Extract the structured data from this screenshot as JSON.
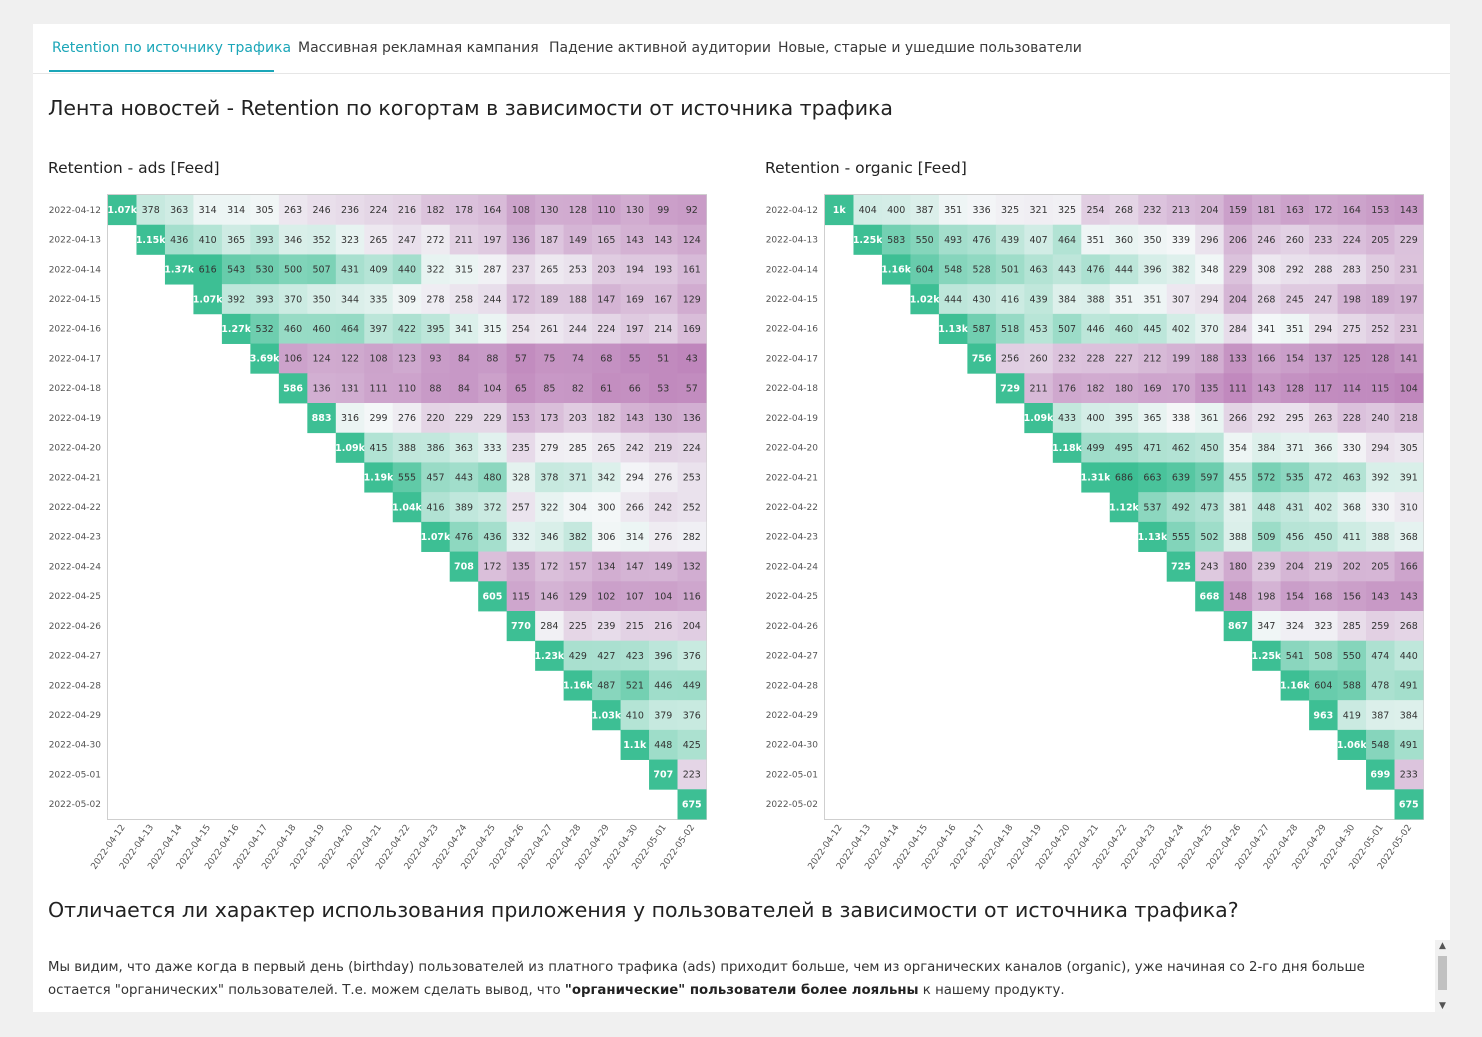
{
  "tabs": [
    {
      "label": "Retention по источнику трафика",
      "active": true
    },
    {
      "label": "Массивная рекламная кампания",
      "active": false
    },
    {
      "label": "Падение активной аудитории",
      "active": false
    },
    {
      "label": "Новые, старые и ушедшие пользователи",
      "active": false
    }
  ],
  "page_title": "Лента новостей - Retention по когортам в зависимости от источника трафика",
  "section_title": "Отличается ли характер использования приложения у пользователей в зависимости от источника трафика?",
  "paragraph": {
    "part1": "Мы видим, что даже когда в первый день (birthday) пользователей из платного трафика (ads) приходит больше, чем из органических каналов (organic), уже начиная со 2-го дня больше остается \"органических\" пользователей. Т.е. можем сделать вывод, что ",
    "bold": "\"органические\" пользователи более лояльны",
    "part2": " к нашему продукту."
  },
  "colors": {
    "accent": "#1ba6b8",
    "scale_high": "#3dbf94",
    "scale_mid": "#f4f7f8",
    "scale_low": "#bf86bc"
  },
  "chart_data": [
    {
      "type": "heatmap",
      "title": "Retention - ads [Feed]",
      "dates": [
        "2022-04-12",
        "2022-04-13",
        "2022-04-14",
        "2022-04-15",
        "2022-04-16",
        "2022-04-17",
        "2022-04-18",
        "2022-04-19",
        "2022-04-20",
        "2022-04-21",
        "2022-04-22",
        "2022-04-23",
        "2022-04-24",
        "2022-04-25",
        "2022-04-26",
        "2022-04-27",
        "2022-04-28",
        "2022-04-29",
        "2022-04-30",
        "2022-05-01",
        "2022-05-02"
      ],
      "rows": [
        [
          "1.07k",
          "378",
          "363",
          "314",
          "314",
          "305",
          "263",
          "246",
          "236",
          "224",
          "216",
          "182",
          "178",
          "164",
          "108",
          "130",
          "128",
          "110",
          "130",
          "99",
          "92"
        ],
        [
          "1.15k",
          "436",
          "410",
          "365",
          "393",
          "346",
          "352",
          "323",
          "265",
          "247",
          "272",
          "211",
          "197",
          "136",
          "187",
          "149",
          "165",
          "143",
          "143",
          "124"
        ],
        [
          "1.37k",
          "616",
          "543",
          "530",
          "500",
          "507",
          "431",
          "409",
          "440",
          "322",
          "315",
          "287",
          "237",
          "265",
          "253",
          "203",
          "194",
          "193",
          "161"
        ],
        [
          "1.07k",
          "392",
          "393",
          "370",
          "350",
          "344",
          "335",
          "309",
          "278",
          "258",
          "244",
          "172",
          "189",
          "188",
          "147",
          "169",
          "167",
          "129"
        ],
        [
          "1.27k",
          "532",
          "460",
          "460",
          "464",
          "397",
          "422",
          "395",
          "341",
          "315",
          "254",
          "261",
          "244",
          "224",
          "197",
          "214",
          "169"
        ],
        [
          "3.69k",
          "106",
          "124",
          "122",
          "108",
          "123",
          "93",
          "84",
          "88",
          "57",
          "75",
          "74",
          "68",
          "55",
          "51",
          "43"
        ],
        [
          "586",
          "136",
          "131",
          "111",
          "110",
          "88",
          "84",
          "104",
          "65",
          "85",
          "82",
          "61",
          "66",
          "53",
          "57"
        ],
        [
          "883",
          "316",
          "299",
          "276",
          "220",
          "229",
          "229",
          "153",
          "173",
          "203",
          "182",
          "143",
          "130",
          "136"
        ],
        [
          "1.09k",
          "415",
          "388",
          "386",
          "363",
          "333",
          "235",
          "279",
          "285",
          "265",
          "242",
          "219",
          "224"
        ],
        [
          "1.19k",
          "555",
          "457",
          "443",
          "480",
          "328",
          "378",
          "371",
          "342",
          "294",
          "276",
          "253"
        ],
        [
          "1.04k",
          "416",
          "389",
          "372",
          "257",
          "322",
          "304",
          "300",
          "266",
          "242",
          "252"
        ],
        [
          "1.07k",
          "476",
          "436",
          "332",
          "346",
          "382",
          "306",
          "314",
          "276",
          "282"
        ],
        [
          "708",
          "172",
          "135",
          "172",
          "157",
          "134",
          "147",
          "149",
          "132"
        ],
        [
          "605",
          "115",
          "146",
          "129",
          "102",
          "107",
          "104",
          "116"
        ],
        [
          "770",
          "284",
          "225",
          "239",
          "215",
          "216",
          "204"
        ],
        [
          "1.23k",
          "429",
          "427",
          "423",
          "396",
          "376"
        ],
        [
          "1.16k",
          "487",
          "521",
          "446",
          "449"
        ],
        [
          "1.03k",
          "410",
          "379",
          "376"
        ],
        [
          "1.1k",
          "448",
          "425"
        ],
        [
          "707",
          "223"
        ],
        [
          "675"
        ]
      ]
    },
    {
      "type": "heatmap",
      "title": "Retention - organic [Feed]",
      "dates": [
        "2022-04-12",
        "2022-04-13",
        "2022-04-14",
        "2022-04-15",
        "2022-04-16",
        "2022-04-17",
        "2022-04-18",
        "2022-04-19",
        "2022-04-20",
        "2022-04-21",
        "2022-04-22",
        "2022-04-23",
        "2022-04-24",
        "2022-04-25",
        "2022-04-26",
        "2022-04-27",
        "2022-04-28",
        "2022-04-29",
        "2022-04-30",
        "2022-05-01",
        "2022-05-02"
      ],
      "rows": [
        [
          "1k",
          "404",
          "400",
          "387",
          "351",
          "336",
          "325",
          "321",
          "325",
          "254",
          "268",
          "232",
          "213",
          "204",
          "159",
          "181",
          "163",
          "172",
          "164",
          "153",
          "143"
        ],
        [
          "1.25k",
          "583",
          "550",
          "493",
          "476",
          "439",
          "407",
          "464",
          "351",
          "360",
          "350",
          "339",
          "296",
          "206",
          "246",
          "260",
          "233",
          "224",
          "205",
          "229"
        ],
        [
          "1.16k",
          "604",
          "548",
          "528",
          "501",
          "463",
          "443",
          "476",
          "444",
          "396",
          "382",
          "348",
          "229",
          "308",
          "292",
          "288",
          "283",
          "250",
          "231"
        ],
        [
          "1.02k",
          "444",
          "430",
          "416",
          "439",
          "384",
          "388",
          "351",
          "351",
          "307",
          "294",
          "204",
          "268",
          "245",
          "247",
          "198",
          "189",
          "197"
        ],
        [
          "1.13k",
          "587",
          "518",
          "453",
          "507",
          "446",
          "460",
          "445",
          "402",
          "370",
          "284",
          "341",
          "351",
          "294",
          "275",
          "252",
          "231"
        ],
        [
          "756",
          "256",
          "260",
          "232",
          "228",
          "227",
          "212",
          "199",
          "188",
          "133",
          "166",
          "154",
          "137",
          "125",
          "128",
          "141"
        ],
        [
          "729",
          "211",
          "176",
          "182",
          "180",
          "169",
          "170",
          "135",
          "111",
          "143",
          "128",
          "117",
          "114",
          "115",
          "104"
        ],
        [
          "1.09k",
          "433",
          "400",
          "395",
          "365",
          "338",
          "361",
          "266",
          "292",
          "295",
          "263",
          "228",
          "240",
          "218"
        ],
        [
          "1.18k",
          "499",
          "495",
          "471",
          "462",
          "450",
          "354",
          "384",
          "371",
          "366",
          "330",
          "294",
          "305"
        ],
        [
          "1.31k",
          "686",
          "663",
          "639",
          "597",
          "455",
          "572",
          "535",
          "472",
          "463",
          "392",
          "391"
        ],
        [
          "1.12k",
          "537",
          "492",
          "473",
          "381",
          "448",
          "431",
          "402",
          "368",
          "330",
          "310"
        ],
        [
          "1.13k",
          "555",
          "502",
          "388",
          "509",
          "456",
          "450",
          "411",
          "388",
          "368"
        ],
        [
          "725",
          "243",
          "180",
          "239",
          "204",
          "219",
          "202",
          "205",
          "166"
        ],
        [
          "668",
          "148",
          "198",
          "154",
          "168",
          "156",
          "143",
          "143"
        ],
        [
          "867",
          "347",
          "324",
          "323",
          "285",
          "259",
          "268"
        ],
        [
          "1.25k",
          "541",
          "508",
          "550",
          "474",
          "440"
        ],
        [
          "1.16k",
          "604",
          "588",
          "478",
          "491"
        ],
        [
          "963",
          "419",
          "387",
          "384"
        ],
        [
          "1.06k",
          "548",
          "491"
        ],
        [
          "699",
          "233"
        ],
        [
          "675"
        ]
      ]
    }
  ]
}
